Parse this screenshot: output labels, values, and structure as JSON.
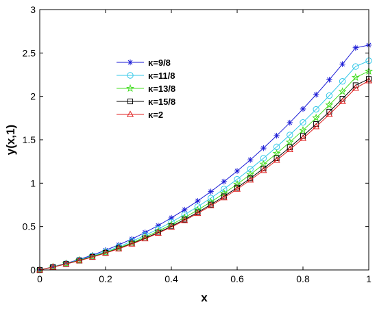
{
  "chart_data": {
    "type": "line",
    "xlabel": "x",
    "ylabel": "y(x,1)",
    "xlim": [
      0,
      1
    ],
    "ylim": [
      0,
      3
    ],
    "xticks": [
      0,
      0.2,
      0.4,
      0.6,
      0.8,
      1
    ],
    "xtick_labels": [
      "0",
      "0.2",
      "0.4",
      "0.6",
      "0.8",
      "1"
    ],
    "yticks": [
      0,
      0.5,
      1,
      1.5,
      2,
      2.5,
      3
    ],
    "ytick_labels": [
      "0",
      "0.5",
      "1",
      "1.5",
      "2",
      "2.5",
      "3"
    ],
    "grid": false,
    "legend_position": "upper-left",
    "x": [
      0,
      0.04,
      0.08,
      0.12,
      0.16,
      0.2,
      0.24,
      0.28,
      0.32,
      0.36,
      0.4,
      0.44,
      0.48,
      0.52,
      0.56,
      0.6,
      0.64,
      0.68,
      0.72,
      0.76,
      0.8,
      0.84,
      0.88,
      0.92,
      0.96,
      1
    ],
    "series": [
      {
        "name": "κ=9/8",
        "color": "#1a1ad6",
        "marker": "asterisk",
        "values": [
          0,
          0.036,
          0.076,
          0.121,
          0.171,
          0.227,
          0.289,
          0.357,
          0.432,
          0.512,
          0.6,
          0.694,
          0.795,
          0.903,
          1.018,
          1.14,
          1.268,
          1.404,
          1.547,
          1.697,
          1.855,
          2.02,
          2.192,
          2.372,
          2.56,
          2.59
        ]
      },
      {
        "name": "κ=11/8",
        "color": "#33c8e8",
        "marker": "circle",
        "values": [
          0,
          0.035,
          0.073,
          0.115,
          0.161,
          0.212,
          0.268,
          0.33,
          0.398,
          0.471,
          0.551,
          0.637,
          0.729,
          0.828,
          0.933,
          1.045,
          1.162,
          1.287,
          1.418,
          1.556,
          1.7,
          1.851,
          2.009,
          2.173,
          2.344,
          2.41
        ]
      },
      {
        "name": "κ=13/8",
        "color": "#44dd22",
        "marker": "star",
        "values": [
          0,
          0.034,
          0.071,
          0.111,
          0.155,
          0.203,
          0.256,
          0.314,
          0.378,
          0.447,
          0.522,
          0.603,
          0.69,
          0.783,
          0.883,
          0.988,
          1.1,
          1.218,
          1.342,
          1.472,
          1.609,
          1.752,
          1.901,
          2.056,
          2.218,
          2.29
        ]
      },
      {
        "name": "κ=15/8",
        "color": "#000000",
        "marker": "square",
        "values": [
          0,
          0.033,
          0.069,
          0.108,
          0.15,
          0.197,
          0.248,
          0.304,
          0.365,
          0.431,
          0.503,
          0.581,
          0.664,
          0.753,
          0.848,
          0.949,
          1.056,
          1.169,
          1.288,
          1.413,
          1.544,
          1.681,
          1.824,
          1.973,
          2.128,
          2.2
        ]
      },
      {
        "name": "κ=2",
        "color": "#e02020",
        "marker": "triangle",
        "values": [
          0,
          0.033,
          0.068,
          0.106,
          0.148,
          0.194,
          0.244,
          0.299,
          0.359,
          0.424,
          0.494,
          0.57,
          0.652,
          0.739,
          0.832,
          0.931,
          1.036,
          1.147,
          1.264,
          1.387,
          1.516,
          1.651,
          1.792,
          1.94,
          2.094,
          2.18
        ]
      }
    ]
  }
}
